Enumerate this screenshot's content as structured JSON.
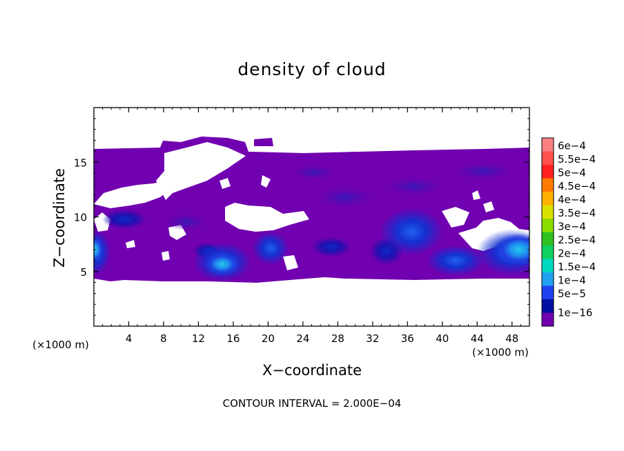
{
  "chart_data": {
    "type": "heatmap",
    "title": "density of cloud",
    "xlabel": "X−coordinate",
    "ylabel": "Z−coordinate",
    "x_unit": "(×1000 m)",
    "y_unit": "(×1000 m)",
    "xlim": [
      0,
      50
    ],
    "ylim": [
      0,
      20
    ],
    "xticks": [
      4,
      8,
      12,
      16,
      20,
      24,
      28,
      32,
      36,
      40,
      44,
      48
    ],
    "yticks": [
      5,
      10,
      15
    ],
    "xtick_labels": [
      "4",
      "8",
      "12",
      "16",
      "20",
      "24",
      "28",
      "32",
      "36",
      "40",
      "44",
      "48"
    ],
    "ytick_labels": [
      "5",
      "10",
      "15"
    ],
    "annotation": "CONTOUR INTERVAL = 2.000E−04",
    "colorbar": {
      "labels": [
        "6e−4",
        "5.5e−4",
        "5e−4",
        "4.5e−4",
        "4e−4",
        "3.5e−4",
        "3e−4",
        "2.5e−4",
        "2e−4",
        "1.5e−4",
        "1e−4",
        "5e−5",
        "1e−16"
      ],
      "colors": [
        "#fa8080",
        "#ff5050",
        "#ff2020",
        "#ff7a00",
        "#ffb000",
        "#d8e000",
        "#8cdc00",
        "#30c020",
        "#10d060",
        "#00d8c0",
        "#20a0f0",
        "#2040f0",
        "#0010a0",
        "#7000b0"
      ]
    },
    "cloud_extent": {
      "z_bottom": 4.2,
      "z_top": 16.0
    },
    "cores": [
      {
        "x": 1,
        "z": 7,
        "value": 0.000155
      },
      {
        "x": 15.5,
        "z": 6.2,
        "value": 0.0001
      },
      {
        "x": 20.5,
        "z": 7.2,
        "value": 8e-05
      },
      {
        "x": 35.5,
        "z": 8.8,
        "value": 8e-05
      },
      {
        "x": 41.5,
        "z": 6.3,
        "value": 8e-05
      },
      {
        "x": 47.5,
        "z": 7.2,
        "value": 0.000155
      },
      {
        "x": 5,
        "z": 10.2,
        "value": 6e-05
      },
      {
        "x": 28,
        "z": 12.5,
        "value": 4e-05
      }
    ]
  }
}
